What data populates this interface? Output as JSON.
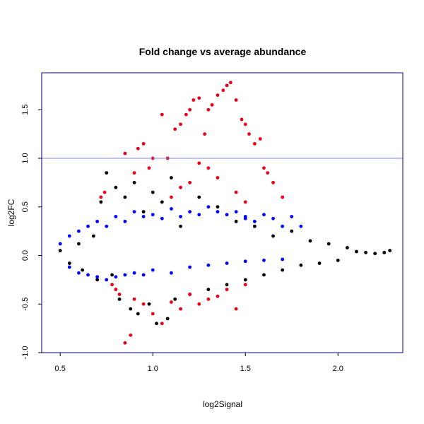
{
  "chart_data": {
    "type": "scatter",
    "title": "Fold change vs average abundance",
    "xlabel": "log2Signal",
    "ylabel": "log2FC",
    "xlim": [
      0.4,
      2.35
    ],
    "ylim": [
      -1.0,
      1.88
    ],
    "x_ticks": [
      0.5,
      1.0,
      1.5,
      2.0
    ],
    "x_tick_labels": [
      "0.5",
      "1.0",
      "1.5",
      "2.0"
    ],
    "y_ticks": [
      -1.0,
      -0.5,
      0.0,
      0.5,
      1.0,
      1.5
    ],
    "y_tick_labels": [
      "-1.0",
      "-0.5",
      "0.0",
      "0.5",
      "1.0",
      "1.5"
    ],
    "reference_line": {
      "y": 1.0,
      "color": "#8080ff"
    },
    "grid": false,
    "series": [
      {
        "color": "#000000",
        "points": [
          [
            0.5,
            0.05
          ],
          [
            0.55,
            -0.08
          ],
          [
            0.6,
            0.12
          ],
          [
            0.62,
            -0.15
          ],
          [
            0.68,
            0.2
          ],
          [
            0.7,
            -0.25
          ],
          [
            0.72,
            0.55
          ],
          [
            0.75,
            0.85
          ],
          [
            0.78,
            -0.2
          ],
          [
            0.8,
            0.7
          ],
          [
            0.82,
            -0.45
          ],
          [
            0.85,
            0.6
          ],
          [
            0.88,
            -0.55
          ],
          [
            0.9,
            0.75
          ],
          [
            0.92,
            -0.6
          ],
          [
            0.95,
            0.45
          ],
          [
            0.98,
            -0.5
          ],
          [
            1.0,
            0.65
          ],
          [
            1.02,
            -0.7
          ],
          [
            1.05,
            0.55
          ],
          [
            1.08,
            -0.65
          ],
          [
            1.1,
            0.8
          ],
          [
            1.12,
            -0.45
          ],
          [
            1.15,
            0.3
          ],
          [
            1.2,
            -0.4
          ],
          [
            1.25,
            0.6
          ],
          [
            1.3,
            -0.35
          ],
          [
            1.35,
            0.5
          ],
          [
            1.4,
            -0.3
          ],
          [
            1.45,
            0.35
          ],
          [
            1.5,
            -0.25
          ],
          [
            1.55,
            0.3
          ],
          [
            1.6,
            -0.2
          ],
          [
            1.65,
            0.2
          ],
          [
            1.7,
            -0.15
          ],
          [
            1.75,
            0.25
          ],
          [
            1.8,
            -0.1
          ],
          [
            1.85,
            0.15
          ],
          [
            1.9,
            -0.08
          ],
          [
            1.95,
            0.12
          ],
          [
            2.0,
            -0.05
          ],
          [
            2.05,
            0.08
          ],
          [
            2.1,
            0.04
          ],
          [
            2.15,
            0.03
          ],
          [
            2.2,
            0.02
          ],
          [
            2.25,
            0.03
          ],
          [
            2.28,
            0.05
          ]
        ]
      },
      {
        "color": "#0000ff",
        "points": [
          [
            0.5,
            0.12
          ],
          [
            0.55,
            0.2
          ],
          [
            0.6,
            0.25
          ],
          [
            0.65,
            0.3
          ],
          [
            0.7,
            0.35
          ],
          [
            0.75,
            0.3
          ],
          [
            0.8,
            0.4
          ],
          [
            0.85,
            0.35
          ],
          [
            0.9,
            0.45
          ],
          [
            0.95,
            0.4
          ],
          [
            1.0,
            0.42
          ],
          [
            1.05,
            0.38
          ],
          [
            1.1,
            0.48
          ],
          [
            1.15,
            0.4
          ],
          [
            1.2,
            0.45
          ],
          [
            1.25,
            0.42
          ],
          [
            1.3,
            0.5
          ],
          [
            1.35,
            0.45
          ],
          [
            1.4,
            0.42
          ],
          [
            1.45,
            0.45
          ],
          [
            1.5,
            0.4
          ],
          [
            1.55,
            0.35
          ],
          [
            1.6,
            0.42
          ],
          [
            1.65,
            0.38
          ],
          [
            1.7,
            0.3
          ],
          [
            1.75,
            0.4
          ],
          [
            1.8,
            0.3
          ],
          [
            1.5,
            0.38
          ],
          [
            0.55,
            -0.12
          ],
          [
            0.6,
            -0.18
          ],
          [
            0.65,
            -0.2
          ],
          [
            0.7,
            -0.22
          ],
          [
            0.75,
            -0.25
          ],
          [
            0.8,
            -0.22
          ],
          [
            0.85,
            -0.2
          ],
          [
            0.9,
            -0.18
          ],
          [
            0.95,
            -0.2
          ],
          [
            1.0,
            -0.15
          ],
          [
            1.1,
            -0.18
          ],
          [
            1.2,
            -0.12
          ],
          [
            1.3,
            -0.1
          ],
          [
            1.4,
            -0.08
          ],
          [
            1.5,
            -0.06
          ],
          [
            1.6,
            -0.05
          ],
          [
            1.7,
            -0.04
          ]
        ]
      },
      {
        "color": "#e8001a",
        "points": [
          [
            0.72,
            0.6
          ],
          [
            0.74,
            0.65
          ],
          [
            0.85,
            1.05
          ],
          [
            0.9,
            0.85
          ],
          [
            0.92,
            1.1
          ],
          [
            0.95,
            1.15
          ],
          [
            0.98,
            0.9
          ],
          [
            1.0,
            1.0
          ],
          [
            1.05,
            1.45
          ],
          [
            1.08,
            1.0
          ],
          [
            1.12,
            1.3
          ],
          [
            1.15,
            1.35
          ],
          [
            1.18,
            1.45
          ],
          [
            1.2,
            1.5
          ],
          [
            1.22,
            1.6
          ],
          [
            1.25,
            1.62
          ],
          [
            1.28,
            1.25
          ],
          [
            1.3,
            1.5
          ],
          [
            1.32,
            1.55
          ],
          [
            1.35,
            1.65
          ],
          [
            1.38,
            1.7
          ],
          [
            1.4,
            1.75
          ],
          [
            1.42,
            1.78
          ],
          [
            1.45,
            1.6
          ],
          [
            1.48,
            1.4
          ],
          [
            1.5,
            1.35
          ],
          [
            1.52,
            1.25
          ],
          [
            1.55,
            1.15
          ],
          [
            1.58,
            1.2
          ],
          [
            1.6,
            0.9
          ],
          [
            1.62,
            0.85
          ],
          [
            1.65,
            0.75
          ],
          [
            1.7,
            0.6
          ],
          [
            1.5,
            0.55
          ],
          [
            1.45,
            0.65
          ],
          [
            1.35,
            0.8
          ],
          [
            1.3,
            0.9
          ],
          [
            1.25,
            0.95
          ],
          [
            1.2,
            0.75
          ],
          [
            1.15,
            0.7
          ],
          [
            1.1,
            0.6
          ],
          [
            0.78,
            -0.3
          ],
          [
            0.8,
            -0.35
          ],
          [
            0.82,
            -0.4
          ],
          [
            0.85,
            -0.9
          ],
          [
            0.88,
            -0.82
          ],
          [
            0.9,
            -0.45
          ],
          [
            0.95,
            -0.5
          ],
          [
            1.0,
            -0.6
          ],
          [
            1.05,
            -0.7
          ],
          [
            1.1,
            -0.48
          ],
          [
            1.15,
            -0.55
          ],
          [
            1.2,
            -0.4
          ],
          [
            1.25,
            -0.5
          ],
          [
            1.3,
            -0.45
          ],
          [
            1.35,
            -0.42
          ],
          [
            1.4,
            -0.35
          ],
          [
            1.45,
            -0.55
          ],
          [
            1.5,
            -0.3
          ]
        ]
      }
    ]
  }
}
